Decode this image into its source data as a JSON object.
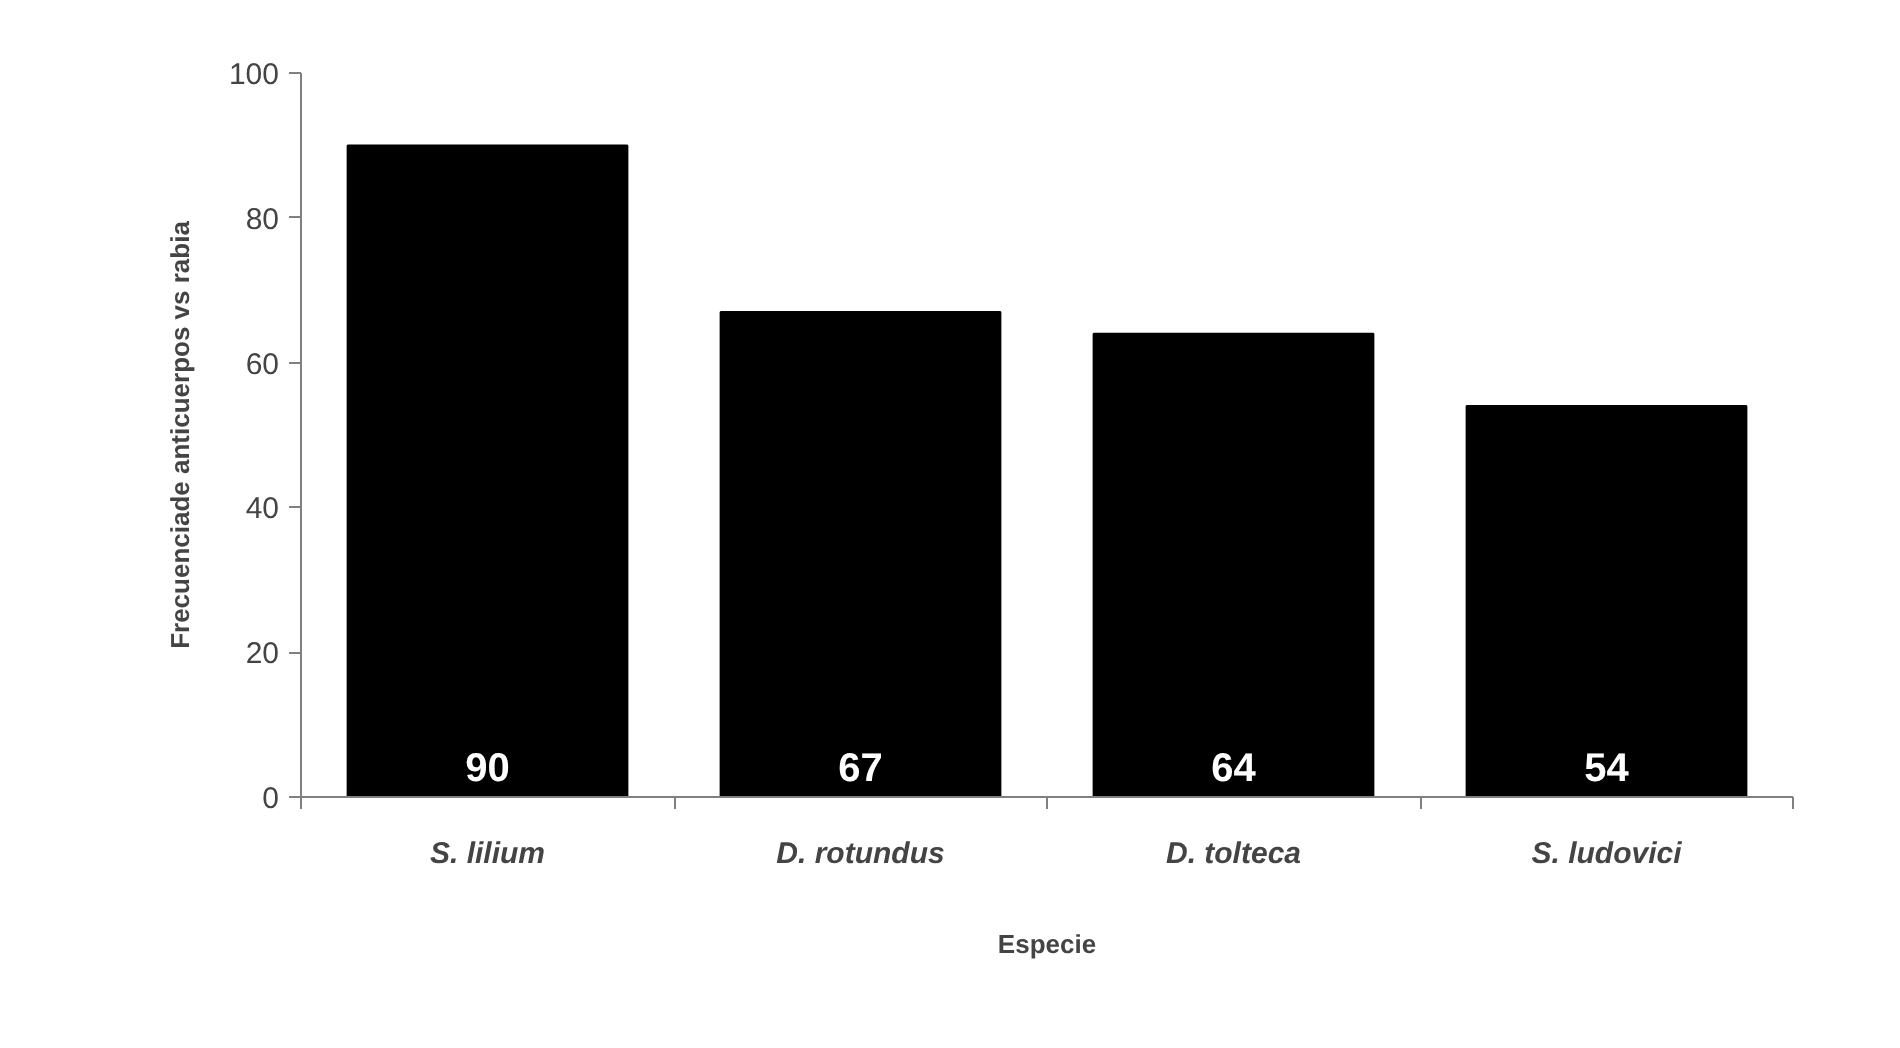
{
  "chart_data": {
    "type": "bar",
    "xlabel": "Especie",
    "ylabel": "Frecuenciade anticuerpos vs rabia",
    "categories": [
      "S. lilium",
      "D. rotundus",
      "D. tolteca",
      "S. ludovici"
    ],
    "values": [
      90,
      67,
      64,
      54
    ],
    "color": "#000000",
    "data_labels": true,
    "ylim": [
      0,
      100
    ],
    "yticks": [
      0,
      20,
      40,
      60,
      80,
      100
    ],
    "grid": false
  }
}
